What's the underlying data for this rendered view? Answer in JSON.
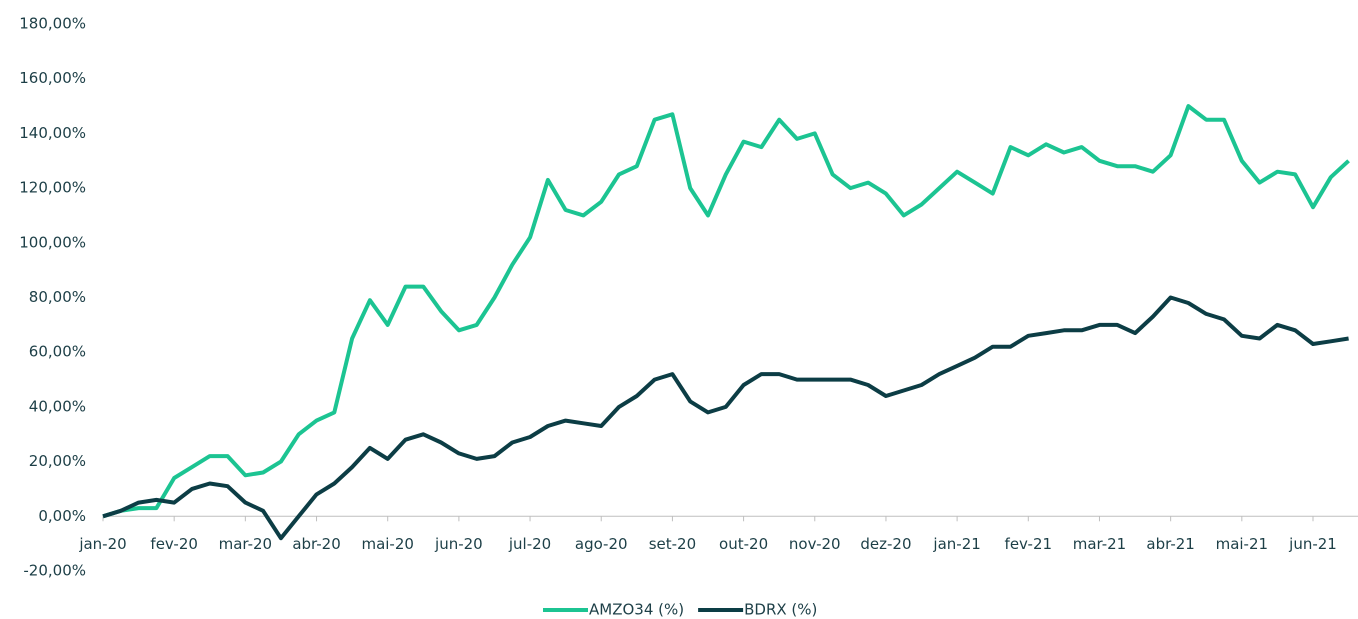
{
  "chart_data": {
    "type": "line",
    "categories": [
      "jan-20",
      null,
      null,
      null,
      "fev-20",
      null,
      null,
      null,
      "mar-20",
      null,
      null,
      null,
      "abr-20",
      null,
      null,
      null,
      "mai-20",
      null,
      null,
      null,
      "jun-20",
      null,
      null,
      null,
      "jul-20",
      null,
      null,
      null,
      "ago-20",
      null,
      null,
      null,
      "set-20",
      null,
      null,
      null,
      "out-20",
      null,
      null,
      null,
      "nov-20",
      null,
      null,
      null,
      "dez-20",
      null,
      null,
      null,
      "jan-21",
      null,
      null,
      null,
      "fev-21",
      null,
      null,
      null,
      "mar-21",
      null,
      null,
      null,
      "abr-21",
      null,
      null,
      null,
      "mai-21",
      null,
      null,
      null,
      "jun-21",
      null,
      null
    ],
    "series": [
      {
        "name": "AMZO34 (%)",
        "color": "#1cc492",
        "values": [
          0,
          2,
          3,
          3,
          14,
          18,
          22,
          22,
          15,
          16,
          20,
          30,
          35,
          38,
          65,
          79,
          70,
          84,
          84,
          75,
          68,
          70,
          80,
          92,
          102,
          123,
          112,
          110,
          115,
          125,
          128,
          145,
          147,
          120,
          110,
          125,
          137,
          135,
          145,
          138,
          140,
          125,
          120,
          122,
          118,
          110,
          114,
          120,
          126,
          122,
          118,
          135,
          132,
          136,
          133,
          135,
          130,
          128,
          128,
          126,
          132,
          150,
          145,
          145,
          130,
          122,
          126,
          125,
          113,
          124,
          130
        ]
      },
      {
        "name": "BDRX (%)",
        "color": "#0c3d45",
        "values": [
          0,
          2,
          5,
          6,
          5,
          10,
          12,
          11,
          5,
          2,
          -8,
          0,
          8,
          12,
          18,
          25,
          21,
          28,
          30,
          27,
          23,
          21,
          22,
          27,
          29,
          33,
          35,
          34,
          33,
          40,
          44,
          50,
          52,
          42,
          38,
          40,
          48,
          52,
          52,
          50,
          50,
          50,
          50,
          48,
          44,
          46,
          48,
          52,
          55,
          58,
          62,
          62,
          66,
          67,
          68,
          68,
          70,
          70,
          67,
          73,
          80,
          78,
          74,
          72,
          66,
          65,
          70,
          68,
          63,
          64,
          65
        ]
      }
    ],
    "ylim": [
      -20,
      180
    ],
    "yticks": [
      {
        "value": -20,
        "label": "-20,00%"
      },
      {
        "value": 0,
        "label": "0,00%"
      },
      {
        "value": 20,
        "label": "20,00%"
      },
      {
        "value": 40,
        "label": "40,00%"
      },
      {
        "value": 60,
        "label": "60,00%"
      },
      {
        "value": 80,
        "label": "80,00%"
      },
      {
        "value": 100,
        "label": "100,00%"
      },
      {
        "value": 120,
        "label": "120,00%"
      },
      {
        "value": 140,
        "label": "140,00%"
      },
      {
        "value": 160,
        "label": "160,00%"
      },
      {
        "value": 180,
        "label": "180,00%"
      }
    ],
    "legend": "bottom"
  }
}
